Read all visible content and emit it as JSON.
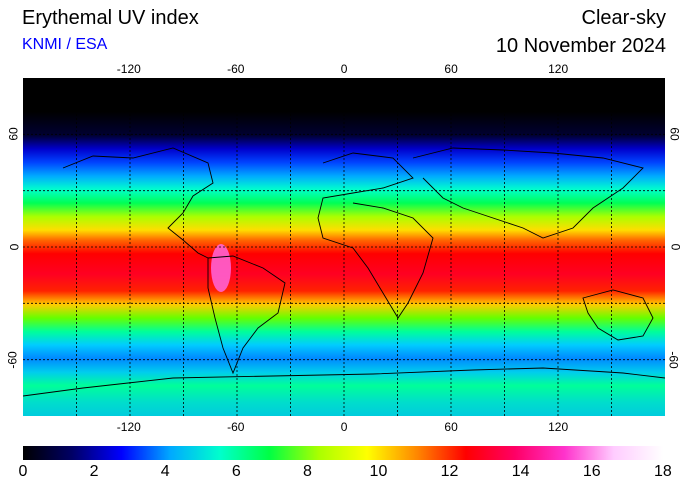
{
  "header": {
    "title": "Erythemal UV index",
    "credit": "KNMI / ESA",
    "sky_condition": "Clear-sky",
    "date": "10 November 2024"
  },
  "map": {
    "projection": "equirectangular",
    "lon_range": [
      -180,
      180
    ],
    "lat_range": [
      -90,
      90
    ],
    "grid_lon": [
      -150,
      -120,
      -90,
      -60,
      -30,
      0,
      30,
      60,
      90,
      120,
      150
    ],
    "grid_lat": [
      -60,
      -30,
      0,
      30,
      60
    ],
    "lon_labels": [
      "-120",
      "-60",
      "0",
      "60",
      "120"
    ],
    "lat_labels": [
      "60",
      "0",
      "-60"
    ],
    "zonal_uv_profile": [
      {
        "lat": 90,
        "uv": 0
      },
      {
        "lat": 70,
        "uv": 0.3
      },
      {
        "lat": 60,
        "uv": 1.5
      },
      {
        "lat": 50,
        "uv": 3
      },
      {
        "lat": 40,
        "uv": 5
      },
      {
        "lat": 30,
        "uv": 7
      },
      {
        "lat": 20,
        "uv": 9
      },
      {
        "lat": 10,
        "uv": 11
      },
      {
        "lat": 0,
        "uv": 12
      },
      {
        "lat": -10,
        "uv": 13
      },
      {
        "lat": -20,
        "uv": 12.5
      },
      {
        "lat": -30,
        "uv": 10
      },
      {
        "lat": -40,
        "uv": 7.5
      },
      {
        "lat": -50,
        "uv": 5.5
      },
      {
        "lat": -60,
        "uv": 4.5
      },
      {
        "lat": -70,
        "uv": 6
      },
      {
        "lat": -80,
        "uv": 7
      },
      {
        "lat": -90,
        "uv": 6.5
      }
    ]
  },
  "colorbar": {
    "min": 0,
    "max": 18,
    "tick_labels": [
      "0",
      "2",
      "4",
      "6",
      "8",
      "10",
      "12",
      "14",
      "16",
      "18"
    ],
    "colors": [
      "#000000",
      "#000066",
      "#0000ff",
      "#00aaff",
      "#00ffcc",
      "#00ff44",
      "#aaff00",
      "#ffff00",
      "#ff8800",
      "#ff0000",
      "#ff0066",
      "#ff33cc",
      "#ffccff",
      "#ffffff"
    ]
  }
}
